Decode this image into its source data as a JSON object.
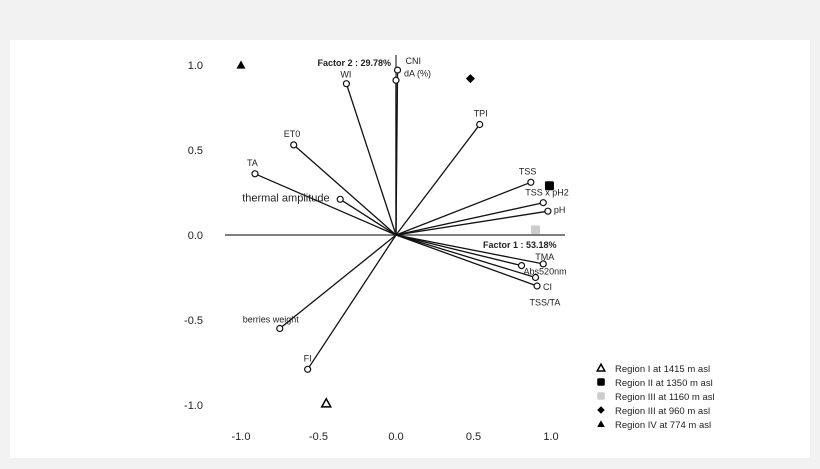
{
  "chart_data": {
    "type": "scatter",
    "subtype": "pca-biplot",
    "xlabel": "Factor 1 : 53.18%",
    "ylabel": "Factor 2 : 29.78%",
    "xlim": [
      -1.1,
      1.1
    ],
    "ylim": [
      -1.1,
      1.1
    ],
    "x_ticks": [
      "-1.0",
      "-0.5",
      "0.0",
      "0.5",
      "1.0"
    ],
    "y_ticks": [
      "1.0",
      "0.5",
      "0.0",
      "-0.5",
      "-1.0"
    ],
    "grid": false,
    "legend_position": "bottom-right",
    "loadings": [
      {
        "label": "CNI",
        "x": 0.01,
        "y": 0.97
      },
      {
        "label": "dA (%)",
        "x": 0.0,
        "y": 0.91
      },
      {
        "label": "WI",
        "x": -0.32,
        "y": 0.89
      },
      {
        "label": "TPI",
        "x": 0.54,
        "y": 0.65
      },
      {
        "label": "ET0",
        "x": -0.66,
        "y": 0.53
      },
      {
        "label": "TA",
        "x": -0.91,
        "y": 0.36
      },
      {
        "label": "thermal amplitude",
        "x": -0.36,
        "y": 0.21
      },
      {
        "label": "TSS",
        "x": 0.87,
        "y": 0.31
      },
      {
        "label": "TSS x pH2",
        "x": 0.95,
        "y": 0.19
      },
      {
        "label": "pH",
        "x": 0.98,
        "y": 0.14
      },
      {
        "label": "TMA",
        "x": 0.95,
        "y": -0.17
      },
      {
        "label": "Abs520nm",
        "x": 0.81,
        "y": -0.18
      },
      {
        "label": "TSS/TA",
        "x": 0.9,
        "y": -0.25
      },
      {
        "label": "CI",
        "x": 0.91,
        "y": -0.3
      },
      {
        "label": "berries weight",
        "x": -0.75,
        "y": -0.55
      },
      {
        "label": "FI",
        "x": -0.57,
        "y": -0.79
      }
    ],
    "series": [
      {
        "name": "Region I at 1415 m asl",
        "marker": "open-triangle",
        "color": "#000000",
        "x": -0.45,
        "y": -0.99
      },
      {
        "name": "Region II at 1350 m asl",
        "marker": "square",
        "color": "#000000",
        "x": 0.99,
        "y": 0.29
      },
      {
        "name": "Region III at 1160 m asl",
        "marker": "square",
        "color": "#cccccc",
        "x": 0.9,
        "y": 0.03
      },
      {
        "name": "Region III at 960 m asl",
        "marker": "diamond",
        "color": "#000000",
        "x": 0.48,
        "y": 0.92
      },
      {
        "name": "Region IV at 774 m asl",
        "marker": "triangle",
        "color": "#000000",
        "x": -1.0,
        "y": 1.0
      }
    ]
  }
}
